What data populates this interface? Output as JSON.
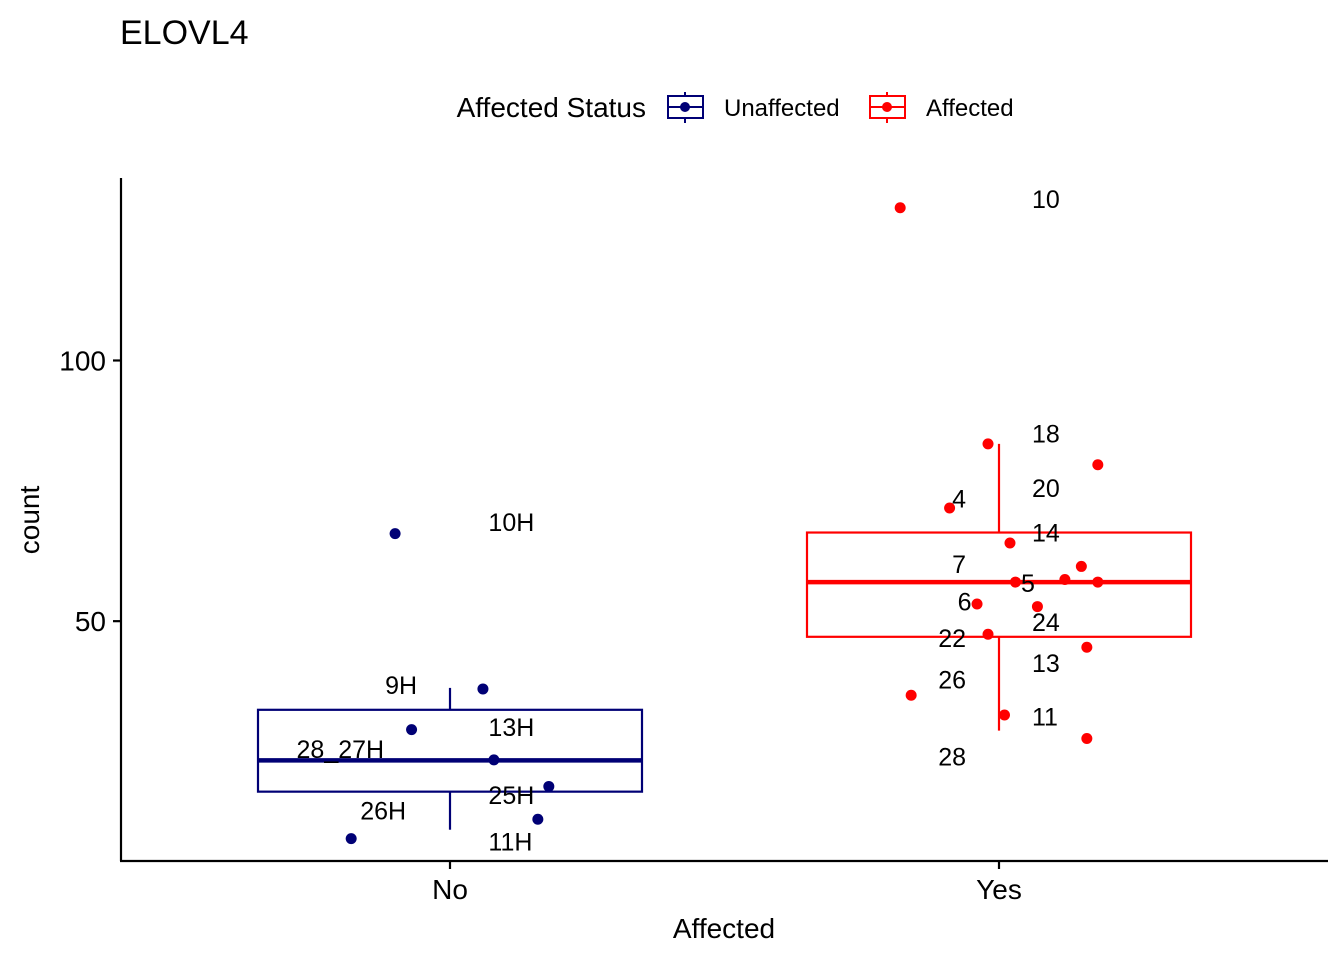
{
  "chart_data": {
    "type": "boxplot",
    "title": "ELOVL4",
    "xlabel": "Affected",
    "ylabel": "count",
    "categories": [
      "No",
      "Yes"
    ],
    "yticks": [
      50,
      100
    ],
    "ylim": [
      4,
      135
    ],
    "legend": {
      "title": "Affected Status",
      "placement": "top",
      "entries": [
        {
          "label": "Unaffected",
          "color": "#000075"
        },
        {
          "label": "Affected",
          "color": "#ff0000"
        }
      ]
    },
    "series": [
      {
        "name": "Unaffected",
        "category": "No",
        "color": "#000075",
        "box": {
          "lower_whisker": 10,
          "q1": 17.3,
          "median": 23.3,
          "q3": 33.0,
          "upper_whisker": 37.2
        },
        "points": [
          {
            "x": -0.18,
            "y": 8.3
          },
          {
            "x": -0.1,
            "y": 66.8
          },
          {
            "x": -0.07,
            "y": 29.2
          },
          {
            "x": 0.06,
            "y": 37.0
          },
          {
            "x": 0.08,
            "y": 23.4
          },
          {
            "x": 0.16,
            "y": 12.0
          },
          {
            "x": 0.18,
            "y": 18.3
          }
        ],
        "labels": [
          {
            "text": "10H",
            "x": 0.07,
            "y": 69.0
          },
          {
            "text": "9H",
            "x": -0.06,
            "y": 37.8
          },
          {
            "text": "13H",
            "x": 0.07,
            "y": 29.7
          },
          {
            "text": "28_27H",
            "x": -0.12,
            "y": 25.5
          },
          {
            "text": "25H",
            "x": 0.07,
            "y": 16.7
          },
          {
            "text": "26H",
            "x": -0.08,
            "y": 13.7
          },
          {
            "text": "11H",
            "x": 0.07,
            "y": 7.7
          }
        ]
      },
      {
        "name": "Affected",
        "category": "Yes",
        "color": "#ff0000",
        "box": {
          "lower_whisker": 29.0,
          "q1": 47.0,
          "median": 57.5,
          "q3": 67.0,
          "upper_whisker": 84.0
        },
        "points": [
          {
            "x": -0.18,
            "y": 129.3
          },
          {
            "x": -0.09,
            "y": 71.7
          },
          {
            "x": -0.02,
            "y": 84.0
          },
          {
            "x": 0.02,
            "y": 65.0
          },
          {
            "x": 0.03,
            "y": 57.5
          },
          {
            "x": 0.12,
            "y": 58.0
          },
          {
            "x": 0.15,
            "y": 60.5
          },
          {
            "x": 0.18,
            "y": 57.5
          },
          {
            "x": 0.18,
            "y": 80.0
          },
          {
            "x": -0.04,
            "y": 53.3
          },
          {
            "x": 0.07,
            "y": 52.8
          },
          {
            "x": -0.02,
            "y": 47.5
          },
          {
            "x": 0.16,
            "y": 45.0
          },
          {
            "x": -0.16,
            "y": 35.8
          },
          {
            "x": 0.01,
            "y": 32.0
          },
          {
            "x": 0.16,
            "y": 27.5
          }
        ],
        "labels": [
          {
            "text": "10",
            "x": 0.06,
            "y": 131.0
          },
          {
            "text": "18",
            "x": 0.06,
            "y": 86.0
          },
          {
            "text": "4",
            "x": -0.06,
            "y": 73.5
          },
          {
            "text": "20",
            "x": 0.06,
            "y": 75.5
          },
          {
            "text": "14",
            "x": 0.06,
            "y": 67.0
          },
          {
            "text": "7",
            "x": -0.06,
            "y": 61.0
          },
          {
            "text": "5",
            "x": 0.04,
            "y": 57.3
          },
          {
            "text": "6",
            "x": -0.05,
            "y": 53.8
          },
          {
            "text": "24",
            "x": 0.06,
            "y": 49.8
          },
          {
            "text": "22",
            "x": -0.06,
            "y": 46.8
          },
          {
            "text": "13",
            "x": 0.06,
            "y": 42.0
          },
          {
            "text": "26",
            "x": -0.06,
            "y": 38.8
          },
          {
            "text": "11",
            "x": 0.06,
            "y": 31.7
          },
          {
            "text": "28",
            "x": -0.06,
            "y": 24.0
          }
        ]
      }
    ]
  }
}
